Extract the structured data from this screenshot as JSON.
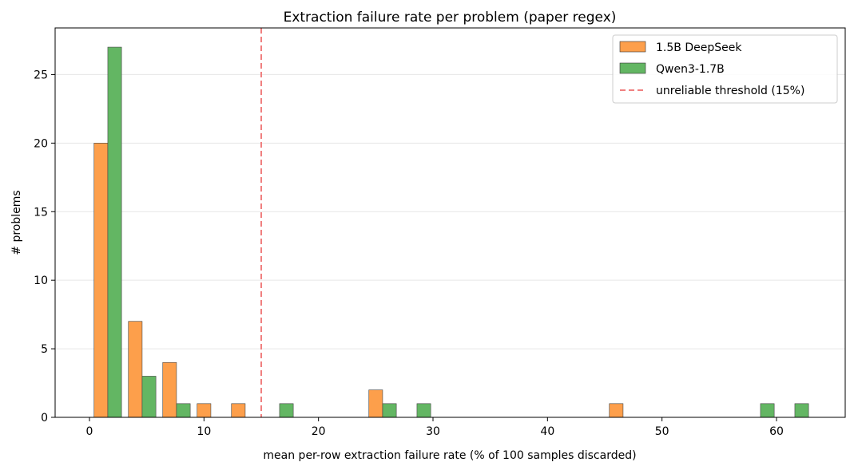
{
  "chart_data": {
    "type": "bar",
    "title": "Extraction failure rate per problem (paper regex)",
    "xlabel": "mean per-row extraction failure rate (% of 100 samples discarded)",
    "ylabel": "# problems",
    "xlim": [
      -3,
      66
    ],
    "ylim": [
      0,
      28.4
    ],
    "xticks": [
      0,
      10,
      20,
      30,
      40,
      50,
      60
    ],
    "yticks": [
      0,
      5,
      10,
      15,
      20,
      25
    ],
    "grid": "y",
    "legend_position": "top-right",
    "bar_width": 1.2,
    "series": [
      {
        "name": "1.5B DeepSeek",
        "color": "#fd9f4b",
        "bars": [
          {
            "x": 1.0,
            "value": 20
          },
          {
            "x": 4.0,
            "value": 7
          },
          {
            "x": 7.0,
            "value": 4
          },
          {
            "x": 10.0,
            "value": 1
          },
          {
            "x": 13.0,
            "value": 1
          },
          {
            "x": 25.0,
            "value": 2
          },
          {
            "x": 46.0,
            "value": 1
          }
        ]
      },
      {
        "name": "Qwen3-1.7B",
        "color": "#63b663",
        "bars": [
          {
            "x": 2.2,
            "value": 27
          },
          {
            "x": 5.2,
            "value": 3
          },
          {
            "x": 8.2,
            "value": 1
          },
          {
            "x": 17.2,
            "value": 1
          },
          {
            "x": 26.2,
            "value": 1
          },
          {
            "x": 29.2,
            "value": 1
          },
          {
            "x": 59.2,
            "value": 1
          },
          {
            "x": 62.2,
            "value": 1
          }
        ]
      }
    ],
    "reference_line": {
      "x": 15,
      "label": "unreliable threshold (15%)",
      "color": "#f08080",
      "style": "dashed"
    }
  }
}
